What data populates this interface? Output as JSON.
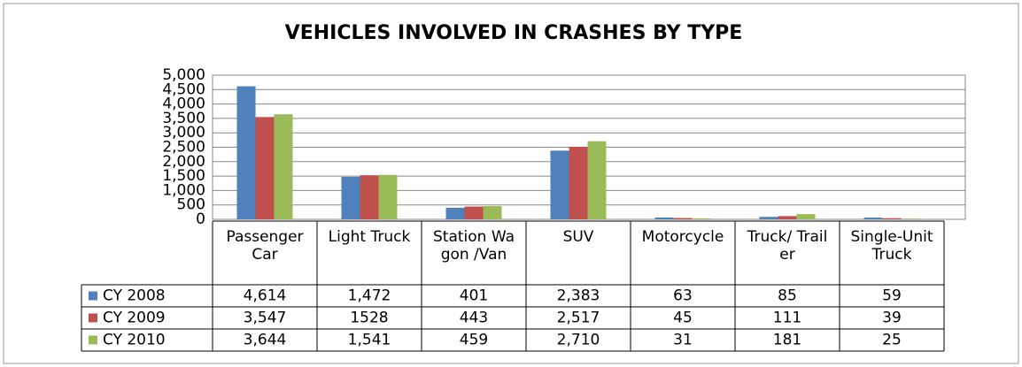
{
  "chart_data": {
    "type": "bar",
    "title": "VEHICLES INVOLVED IN CRASHES BY TYPE",
    "categories": [
      "Passenger Car",
      "Light Truck",
      "Station Wagon /Van",
      "SUV",
      "Motorcycle",
      "Truck/ Trailer",
      "Single-Unit Truck"
    ],
    "series": [
      {
        "name": "CY 2008",
        "color": "#4f81bd",
        "values": [
          4614,
          1472,
          401,
          2383,
          63,
          85,
          59
        ],
        "value_labels": [
          "4,614",
          "1,472",
          "401",
          "2,383",
          "63",
          "85",
          "59"
        ]
      },
      {
        "name": "CY 2009",
        "color": "#c0504d",
        "values": [
          3547,
          1528,
          443,
          2517,
          45,
          111,
          39
        ],
        "value_labels": [
          "3,547",
          "1528",
          "443",
          "2,517",
          "45",
          "111",
          "39"
        ]
      },
      {
        "name": "CY 2010",
        "color": "#9bbb59",
        "values": [
          3644,
          1541,
          459,
          2710,
          31,
          181,
          25
        ],
        "value_labels": [
          "3,644",
          "1,541",
          "459",
          "2,710",
          "31",
          "181",
          "25"
        ]
      }
    ],
    "ylim": [
      0,
      5000
    ],
    "yticks": [
      0,
      500,
      {
        "value": 1000,
        "label": "1,000"
      },
      {
        "value": 1500,
        "label": "1,500"
      },
      {
        "value": 2000,
        "label": "2,000"
      },
      {
        "value": 2500,
        "label": "2,500"
      },
      {
        "value": 3000,
        "label": "3,000"
      },
      {
        "value": 3500,
        "label": "3,500"
      },
      {
        "value": 4000,
        "label": "4,000"
      },
      {
        "value": 4500,
        "label": "4,500"
      },
      {
        "value": 5000,
        "label": "5,000"
      }
    ],
    "grid": true
  }
}
